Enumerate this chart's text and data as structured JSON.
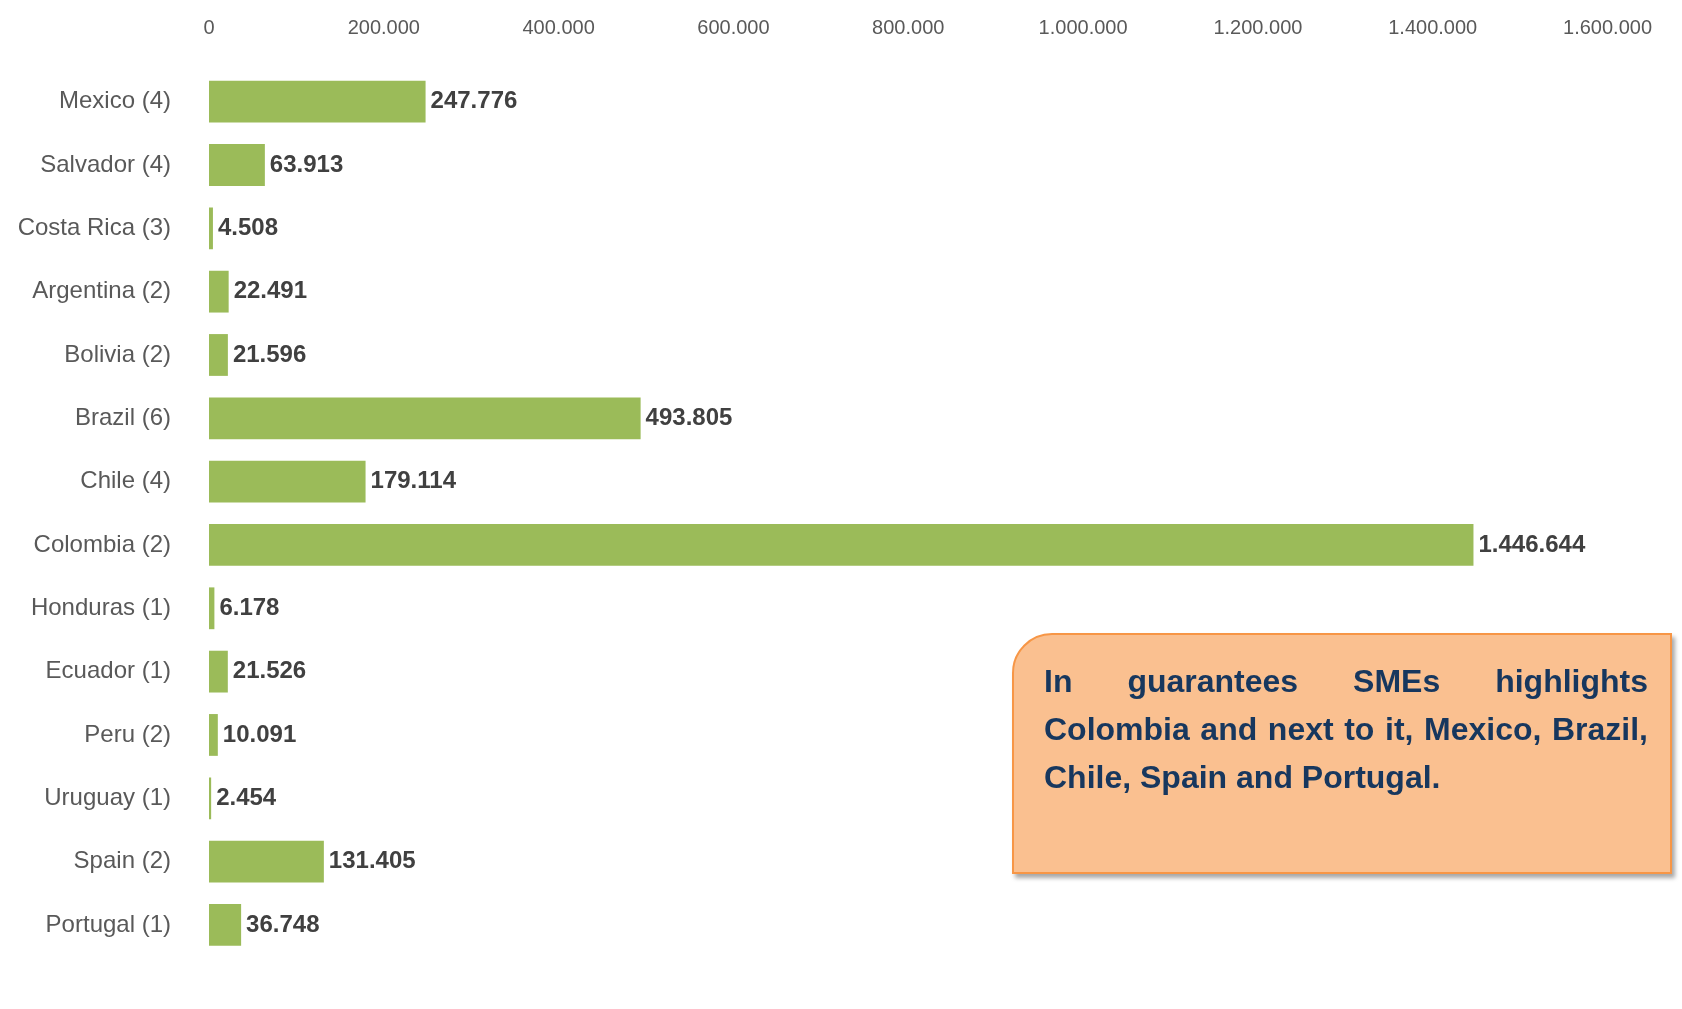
{
  "chart_data": {
    "type": "bar",
    "orientation": "horizontal",
    "categories": [
      "Mexico (4)",
      "Salvador (4)",
      "Costa Rica (3)",
      "Argentina (2)",
      "Bolivia (2)",
      "Brazil (6)",
      "Chile (4)",
      "Colombia (2)",
      "Honduras (1)",
      "Ecuador (1)",
      "Peru (2)",
      "Uruguay (1)",
      "Spain (2)",
      "Portugal (1)"
    ],
    "values": [
      247776,
      63913,
      4508,
      22491,
      21596,
      493805,
      179114,
      1446644,
      6178,
      21526,
      10091,
      2454,
      131405,
      36748
    ],
    "value_labels": [
      "247.776",
      "63.913",
      "4.508",
      "22.491",
      "21.596",
      "493.805",
      "179.114",
      "1.446.644",
      "6.178",
      "21.526",
      "10.091",
      "2.454",
      "131.405",
      "36.748"
    ],
    "color": "#9bbb59",
    "xlim": [
      0,
      1600000
    ],
    "xticks": [
      0,
      {
        "value": 200000,
        "label": "200.000"
      },
      {
        "value": 400000,
        "label": "400.000"
      },
      {
        "value": 600000,
        "label": "600.000"
      },
      {
        "value": 800000,
        "label": "800.000"
      },
      {
        "value": 1000000,
        "label": "1.000.000"
      },
      {
        "value": 1200000,
        "label": "1.200.000"
      },
      {
        "value": 1400000,
        "label": "1.400.000"
      },
      {
        "value": 1600000,
        "label": "1.600.000"
      }
    ],
    "annotations": [
      "In guarantees SMEs highlights Colombia and next to it, Mexico, Brazil, Chile, Spain and Portugal."
    ]
  }
}
